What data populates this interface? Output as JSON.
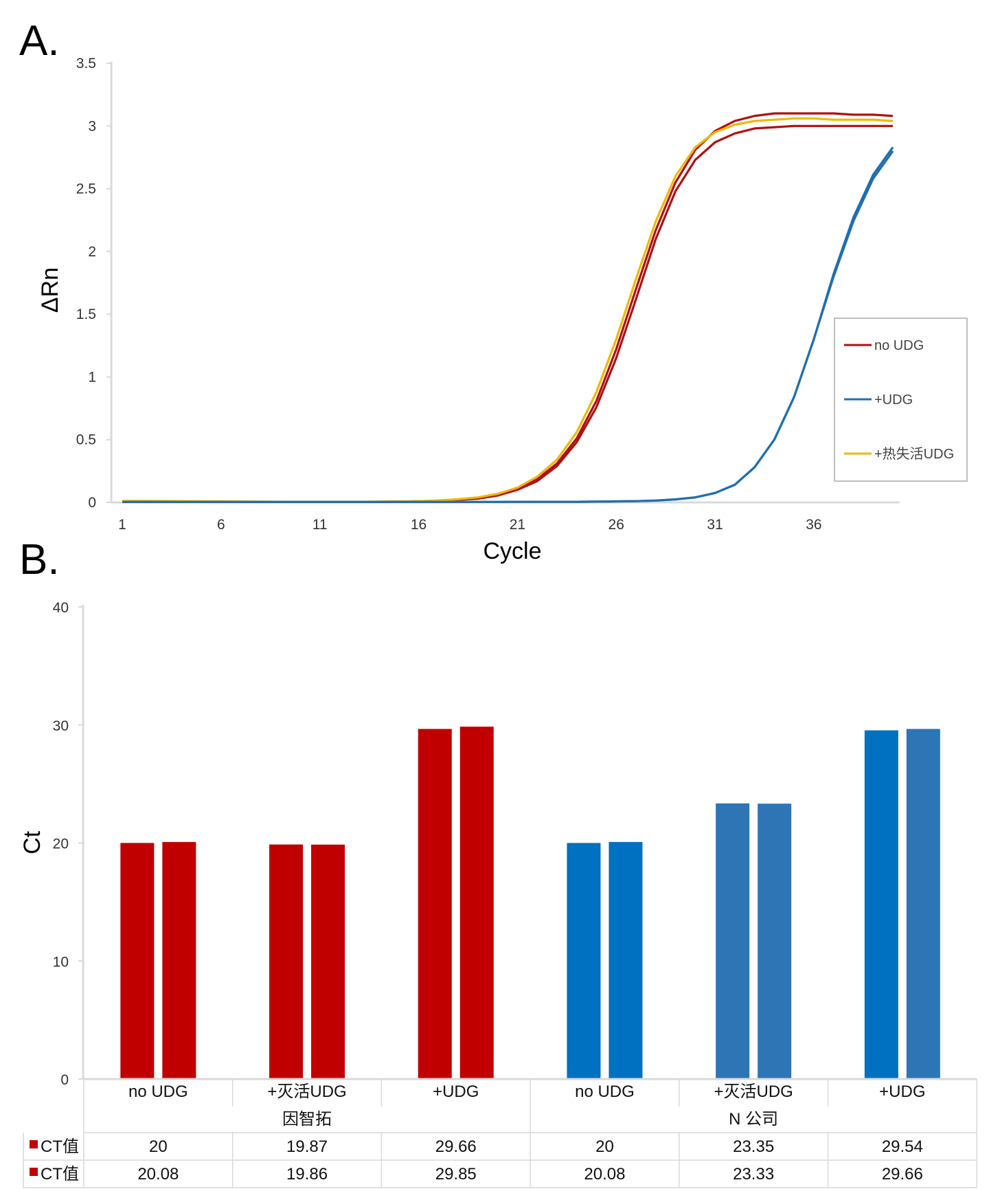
{
  "chart_data": [
    {
      "panel_label": "A.",
      "type": "line",
      "xlabel": "Cycle",
      "ylabel": "ΔRn",
      "xlim": [
        1,
        40
      ],
      "ylim": [
        0,
        3.5
      ],
      "x_ticks": [
        "1",
        "6",
        "11",
        "16",
        "21",
        "26",
        "31",
        "36"
      ],
      "y_ticks": [
        "0",
        "0.5",
        "1",
        "1.5",
        "2",
        "2.5",
        "3",
        "3.5"
      ],
      "legend": "right",
      "grid": false,
      "x": [
        1,
        2,
        3,
        4,
        5,
        6,
        7,
        8,
        9,
        10,
        11,
        12,
        13,
        14,
        15,
        16,
        17,
        18,
        19,
        20,
        21,
        22,
        23,
        24,
        25,
        26,
        27,
        28,
        29,
        30,
        31,
        32,
        33,
        34,
        35,
        36,
        37,
        38,
        39,
        40
      ],
      "series": [
        {
          "name": "no UDG",
          "color": "#b01010",
          "values": [
            0.005,
            0.005,
            0.005,
            0.005,
            0.004,
            0.004,
            0.004,
            0.004,
            0.004,
            0.004,
            0.004,
            0.004,
            0.004,
            0.005,
            0.006,
            0.008,
            0.012,
            0.02,
            0.03,
            0.055,
            0.1,
            0.17,
            0.29,
            0.48,
            0.76,
            1.15,
            1.62,
            2.1,
            2.48,
            2.73,
            2.87,
            2.94,
            2.98,
            2.99,
            3.0,
            3.0,
            3.0,
            3.0,
            3.0,
            3.0
          ]
        },
        {
          "name": "no UDG",
          "color": "#b01010",
          "values": [
            0.006,
            0.006,
            0.005,
            0.005,
            0.005,
            0.005,
            0.004,
            0.004,
            0.004,
            0.004,
            0.004,
            0.004,
            0.005,
            0.005,
            0.006,
            0.009,
            0.013,
            0.022,
            0.034,
            0.06,
            0.105,
            0.185,
            0.31,
            0.51,
            0.81,
            1.22,
            1.7,
            2.17,
            2.55,
            2.81,
            2.96,
            3.04,
            3.08,
            3.1,
            3.1,
            3.1,
            3.1,
            3.09,
            3.09,
            3.08
          ]
        },
        {
          "name": "+热失活UDG",
          "color": "#f0b800",
          "values": [
            0.012,
            0.012,
            0.011,
            0.01,
            0.009,
            0.008,
            0.007,
            0.006,
            0.005,
            0.005,
            0.005,
            0.005,
            0.005,
            0.006,
            0.007,
            0.01,
            0.016,
            0.025,
            0.04,
            0.068,
            0.118,
            0.205,
            0.34,
            0.56,
            0.88,
            1.3,
            1.78,
            2.24,
            2.6,
            2.83,
            2.95,
            3.01,
            3.04,
            3.05,
            3.06,
            3.06,
            3.05,
            3.05,
            3.05,
            3.04
          ]
        },
        {
          "name": "+UDG",
          "color": "#1f6fb0",
          "values": [
            0.004,
            0.004,
            0.004,
            0.004,
            0.004,
            0.004,
            0.004,
            0.004,
            0.004,
            0.004,
            0.004,
            0.004,
            0.004,
            0.004,
            0.004,
            0.004,
            0.004,
            0.004,
            0.004,
            0.004,
            0.005,
            0.005,
            0.005,
            0.005,
            0.006,
            0.008,
            0.01,
            0.015,
            0.024,
            0.04,
            0.075,
            0.14,
            0.28,
            0.5,
            0.84,
            1.3,
            1.8,
            2.24,
            2.58,
            2.8
          ]
        },
        {
          "name": "+UDG",
          "color": "#1f6fb0",
          "values": [
            0.004,
            0.004,
            0.004,
            0.004,
            0.004,
            0.004,
            0.004,
            0.004,
            0.004,
            0.004,
            0.004,
            0.004,
            0.004,
            0.004,
            0.004,
            0.004,
            0.004,
            0.004,
            0.004,
            0.004,
            0.005,
            0.005,
            0.005,
            0.005,
            0.006,
            0.008,
            0.01,
            0.015,
            0.024,
            0.04,
            0.075,
            0.14,
            0.28,
            0.5,
            0.84,
            1.3,
            1.82,
            2.27,
            2.61,
            2.83
          ]
        }
      ],
      "legend_entries": [
        {
          "label": "no UDG",
          "color": "#b01010"
        },
        {
          "label": "+UDG",
          "color": "#1f6fb0"
        },
        {
          "label": "+热失活UDG",
          "color": "#f0b800"
        }
      ]
    },
    {
      "panel_label": "B.",
      "type": "bar",
      "ylabel": "Ct",
      "ylim": [
        0,
        40
      ],
      "y_ticks": [
        "0",
        "10",
        "20",
        "30",
        "40"
      ],
      "grid": false,
      "categories": [
        "no UDG",
        "+灭活UDG",
        "+UDG",
        "no UDG",
        "+灭活UDG",
        "+UDG"
      ],
      "groups": [
        {
          "label": "因智拓",
          "span": 3
        },
        {
          "label": "N 公司",
          "span": 3
        }
      ],
      "series": [
        {
          "name": "CT值",
          "values": [
            20,
            19.87,
            29.66,
            20,
            23.35,
            29.54
          ]
        },
        {
          "name": "CT值",
          "values": [
            20.08,
            19.86,
            29.85,
            20.08,
            23.33,
            29.66
          ]
        }
      ],
      "bar_colors": [
        "#c00000",
        "#c00000",
        "#c00000",
        "#0070c0",
        "#2e75b6",
        "#0070c0"
      ],
      "bar_colors_second": [
        "#c00000",
        "#c00000",
        "#c00000",
        "#0070c0",
        "#2e75b6",
        "#2e75b6"
      ],
      "table_marker_color": "#c00000",
      "table_values": [
        [
          "20",
          "19.87",
          "29.66",
          "20",
          "23.35",
          "29.54"
        ],
        [
          "20.08",
          "19.86",
          "29.85",
          "20.08",
          "23.33",
          "29.66"
        ]
      ]
    }
  ]
}
